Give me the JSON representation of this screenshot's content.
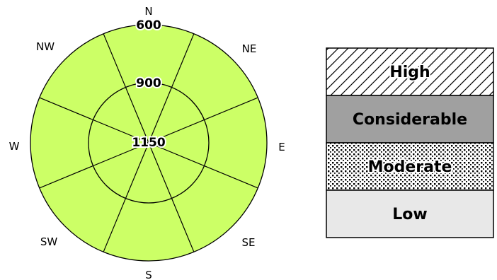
{
  "rose": {
    "directions": [
      "N",
      "NE",
      "E",
      "SE",
      "S",
      "SW",
      "W",
      "NW"
    ],
    "elevations": [
      "600",
      "900",
      "1150"
    ],
    "fill_color": "#ccff66",
    "line_color": "#000000"
  },
  "danger_scale": {
    "levels": [
      {
        "label": "High",
        "pattern": "diagonal-hatch",
        "color": "#ffffff"
      },
      {
        "label": "Considerable",
        "pattern": "solid",
        "color": "#a0a0a0"
      },
      {
        "label": "Moderate",
        "pattern": "dots",
        "color": "#ffffff"
      },
      {
        "label": "Low",
        "pattern": "solid",
        "color": "#e8e8e8"
      }
    ]
  }
}
